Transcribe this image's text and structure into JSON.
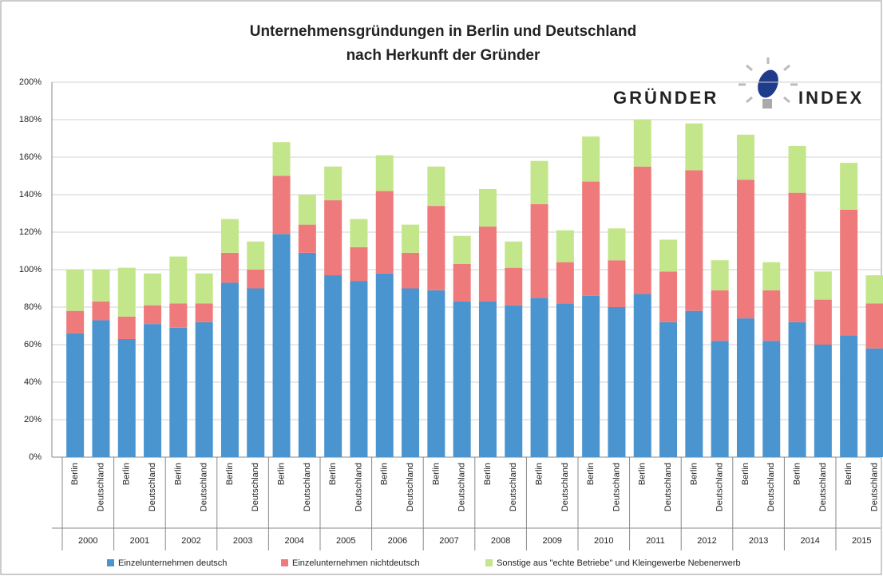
{
  "chart_data": {
    "type": "stacked_bar",
    "title": "Unternehmensgründungen in Berlin und Deutschland",
    "subtitle": "nach Herkunft der Gründer",
    "logo": {
      "left": "GRÜNDER",
      "right": "INDEX"
    },
    "categories": [
      "Berlin",
      "Deutschland",
      "Berlin",
      "Deutschland",
      "Berlin",
      "Deutschland",
      "Berlin",
      "Deutschland",
      "Berlin",
      "Deutschland",
      "Berlin",
      "Deutschland",
      "Berlin",
      "Deutschland",
      "Berlin",
      "Deutschland",
      "Berlin",
      "Deutschland",
      "Berlin",
      "Deutschland",
      "Berlin",
      "Deutschland",
      "Berlin",
      "Deutschland",
      "Berlin",
      "Deutschland",
      "Berlin",
      "Deutschland",
      "Berlin",
      "Deutschland",
      "Berlin",
      "Deutschland"
    ],
    "groups": [
      "2000",
      "2001",
      "2002",
      "2003",
      "2004",
      "2005",
      "2006",
      "2007",
      "2008",
      "2009",
      "2010",
      "2011",
      "2012",
      "2013",
      "2014",
      "2015"
    ],
    "series": [
      {
        "name": "Einzelunternehmen deutsch",
        "color": "#4a94cf",
        "values": [
          66,
          73,
          63,
          71,
          69,
          72,
          93,
          90,
          119,
          109,
          97,
          94,
          98,
          90,
          89,
          83,
          83,
          81,
          85,
          82,
          86,
          80,
          87,
          72,
          78,
          62,
          74,
          62,
          72,
          60,
          65,
          58
        ]
      },
      {
        "name": "Einzelunternehmen nichtdeutsch",
        "color": "#ef7a7c",
        "values": [
          12,
          10,
          12,
          10,
          13,
          10,
          16,
          10,
          31,
          15,
          40,
          18,
          44,
          19,
          45,
          20,
          40,
          20,
          50,
          22,
          61,
          25,
          68,
          27,
          75,
          27,
          74,
          27,
          69,
          24,
          67,
          24
        ]
      },
      {
        "name": "Sonstige aus \"echte Betriebe\" und Kleingewerbe Nebenerwerb",
        "color": "#c4e68a",
        "values": [
          22,
          17,
          26,
          17,
          25,
          16,
          18,
          15,
          18,
          16,
          18,
          15,
          19,
          15,
          21,
          15,
          20,
          14,
          23,
          17,
          24,
          17,
          25,
          17,
          25,
          16,
          24,
          15,
          25,
          15,
          25,
          15
        ]
      }
    ],
    "ylim": [
      0,
      200
    ],
    "yticks": [
      {
        "value": 0,
        "label": "0%"
      },
      {
        "value": 20,
        "label": "20%"
      },
      {
        "value": 40,
        "label": "40%"
      },
      {
        "value": 60,
        "label": "60%"
      },
      {
        "value": 80,
        "label": "80%"
      },
      {
        "value": 100,
        "label": "100%"
      },
      {
        "value": 120,
        "label": "120%"
      },
      {
        "value": 140,
        "label": "140%"
      },
      {
        "value": 160,
        "label": "160%"
      },
      {
        "value": 180,
        "label": "180%"
      },
      {
        "value": 200,
        "label": "200%"
      }
    ],
    "grid": true,
    "legend": "bottom"
  }
}
